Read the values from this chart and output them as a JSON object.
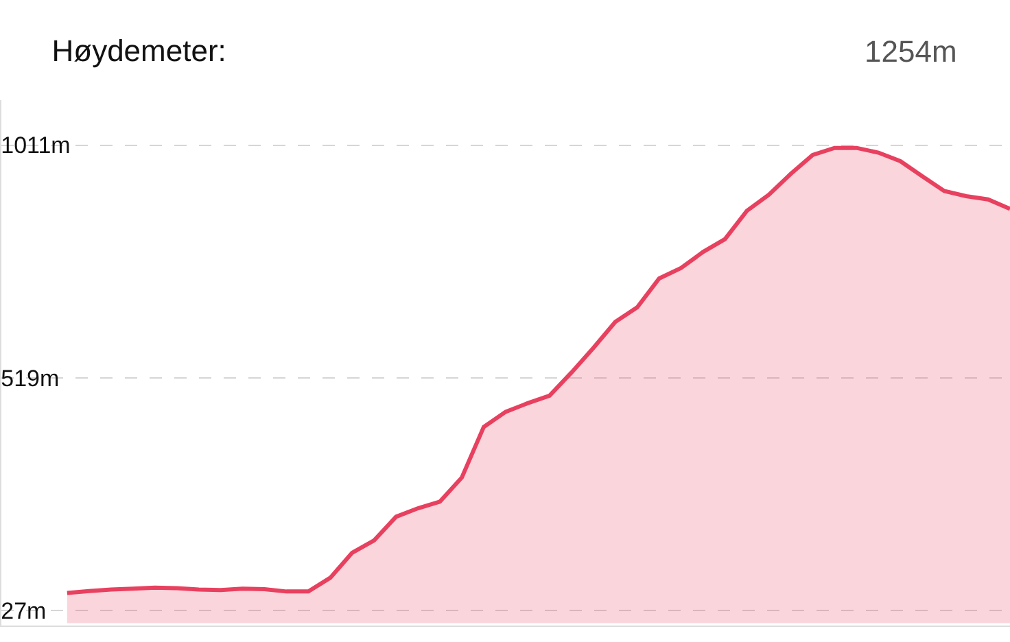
{
  "chart_data": {
    "type": "area",
    "title": "Høydemeter:",
    "annotations": [
      "1254m"
    ],
    "categories": [
      null,
      null,
      null,
      null,
      null,
      null,
      null,
      null,
      null,
      null,
      null,
      null,
      null,
      null,
      null,
      null,
      null,
      null,
      null,
      null,
      null,
      null,
      null,
      null,
      null,
      null,
      null,
      null,
      null,
      null,
      null,
      null,
      null,
      null,
      null,
      null,
      null,
      null,
      null,
      null,
      null,
      null,
      null,
      null,
      null,
      null,
      null
    ],
    "series": [
      {
        "color": "#e8405f",
        "values": [
          null,
          null,
          null,
          64,
          68,
          71,
          73,
          75,
          74,
          71,
          70,
          73,
          72,
          67,
          67,
          96,
          149,
          175,
          225,
          243,
          257,
          308,
          415,
          447,
          465,
          481,
          530,
          582,
          637,
          668,
          729,
          751,
          785,
          812,
          872,
          906,
          950,
          990,
          1005,
          1005,
          995,
          977,
          945,
          914,
          903,
          896,
          876
        ]
      }
    ],
    "ylim": [
      -5,
      1106
    ],
    "yticks": [
      {
        "value": 27,
        "label": "27m"
      },
      {
        "value": 519,
        "label": "519m"
      },
      {
        "value": 1011,
        "label": "1011m"
      }
    ],
    "grid": "y",
    "tick_labels": "y",
    "legend": false
  }
}
